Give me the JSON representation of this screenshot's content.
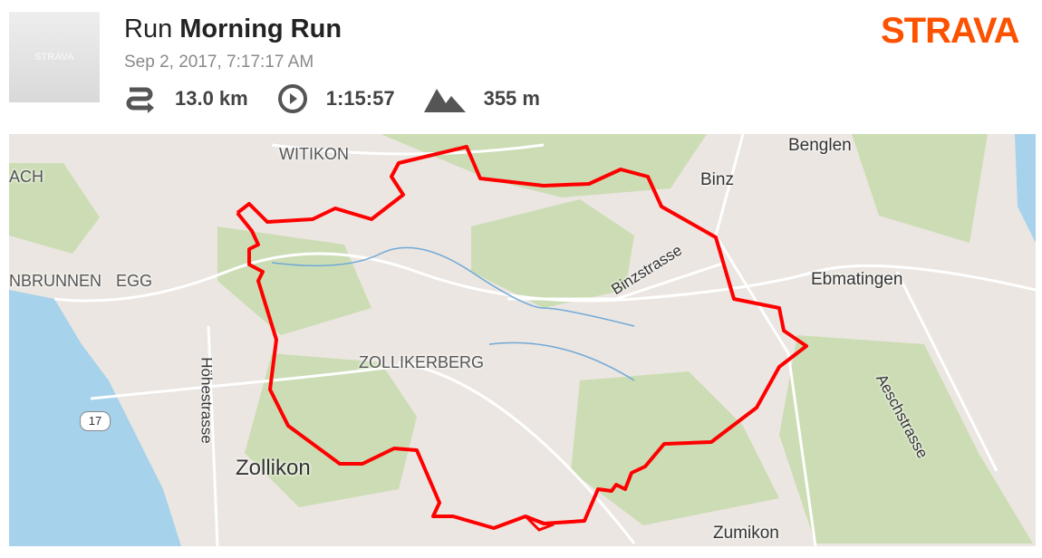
{
  "header": {
    "avatar_text": "STRAVA",
    "activity_type": "Run",
    "activity_name": "Morning Run",
    "datetime": "Sep 2, 2017, 7:17:17 AM",
    "stats": [
      {
        "icon": "route-icon",
        "value": "13.0 km"
      },
      {
        "icon": "clock-icon",
        "value": "1:15:57"
      },
      {
        "icon": "mountain-icon",
        "value": "355 m"
      }
    ],
    "logo": "STRAVA",
    "brand_color": "#fc5200"
  },
  "map": {
    "route_color": "#ff0000",
    "labels": {
      "witikon": "WITIKON",
      "benglen": "Benglen",
      "binz": "Binz",
      "ach": "ACH",
      "nbrunnen": "NBRUNNEN",
      "egg": "EGG",
      "ebmatingen": "Ebmatingen",
      "binzstrasse": "Binzstrasse",
      "zollikerberg": "ZOLLIKERBERG",
      "hoehestrasse": "Höhestrasse",
      "aeschstrasse": "Aeschstrasse",
      "road_17": "17",
      "zollikon": "Zollikon",
      "zumikon": "Zumikon"
    }
  }
}
